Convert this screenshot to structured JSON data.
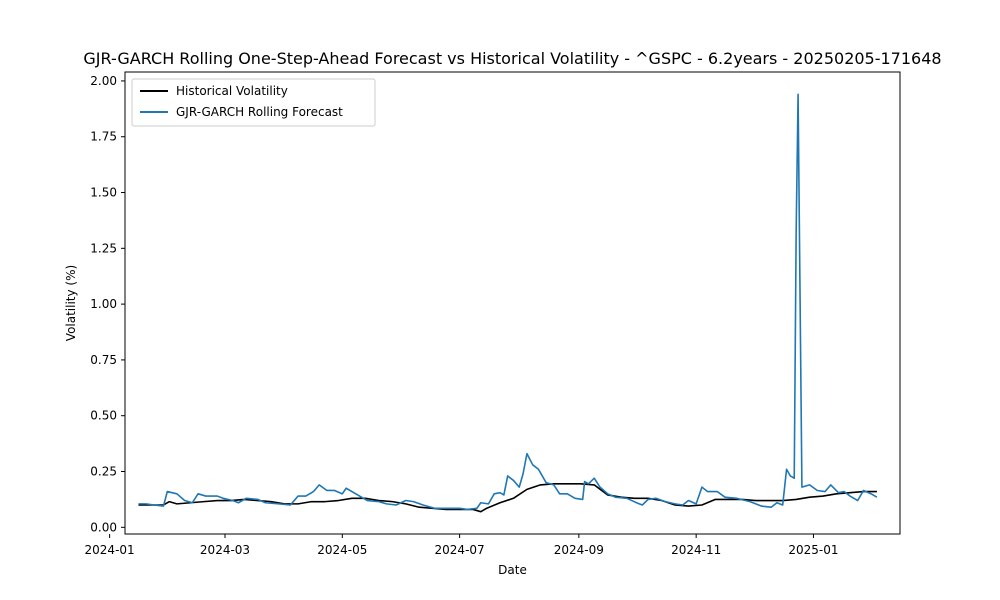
{
  "chart_data": {
    "type": "line",
    "title": "GJR-GARCH Rolling One-Step-Ahead Forecast vs Historical Volatility - ^GSPC - 6.2years - 20250205-171648",
    "xlabel": "Date",
    "ylabel": "Volatility (%)",
    "ylim": [
      -0.03,
      2.04
    ],
    "xlim": [
      "2024-01-09",
      "2025-02-15"
    ],
    "x_ticks": [
      "2024-01-01",
      "2024-03-01",
      "2024-05-01",
      "2024-07-01",
      "2024-09-01",
      "2024-11-01",
      "2025-01-01"
    ],
    "x_tick_labels": [
      "2024-01",
      "2024-03",
      "2024-05",
      "2024-07",
      "2024-09",
      "2024-11",
      "2025-01"
    ],
    "y_ticks": [
      0.0,
      0.25,
      0.5,
      0.75,
      1.0,
      1.25,
      1.5,
      1.75,
      2.0
    ],
    "y_tick_labels": [
      "0.00",
      "0.25",
      "0.50",
      "0.75",
      "1.00",
      "1.25",
      "1.50",
      "1.75",
      "2.00"
    ],
    "grid": false,
    "legend": "top-left",
    "series": [
      {
        "name": "Historical Volatility",
        "color": "#000000",
        "points": [
          [
            "2024-01-16",
            0.1
          ],
          [
            "2024-01-22",
            0.1
          ],
          [
            "2024-01-29",
            0.1
          ],
          [
            "2024-02-01",
            0.115
          ],
          [
            "2024-02-05",
            0.105
          ],
          [
            "2024-02-12",
            0.11
          ],
          [
            "2024-02-19",
            0.115
          ],
          [
            "2024-02-26",
            0.12
          ],
          [
            "2024-03-04",
            0.12
          ],
          [
            "2024-03-11",
            0.125
          ],
          [
            "2024-03-18",
            0.12
          ],
          [
            "2024-03-25",
            0.115
          ],
          [
            "2024-04-01",
            0.105
          ],
          [
            "2024-04-08",
            0.105
          ],
          [
            "2024-04-15",
            0.115
          ],
          [
            "2024-04-22",
            0.115
          ],
          [
            "2024-04-29",
            0.12
          ],
          [
            "2024-05-06",
            0.13
          ],
          [
            "2024-05-13",
            0.13
          ],
          [
            "2024-05-20",
            0.12
          ],
          [
            "2024-05-27",
            0.115
          ],
          [
            "2024-06-03",
            0.105
          ],
          [
            "2024-06-10",
            0.09
          ],
          [
            "2024-06-17",
            0.085
          ],
          [
            "2024-06-24",
            0.08
          ],
          [
            "2024-07-01",
            0.08
          ],
          [
            "2024-07-08",
            0.08
          ],
          [
            "2024-07-12",
            0.07
          ],
          [
            "2024-07-15",
            0.085
          ],
          [
            "2024-07-22",
            0.11
          ],
          [
            "2024-07-29",
            0.13
          ],
          [
            "2024-08-05",
            0.17
          ],
          [
            "2024-08-12",
            0.19
          ],
          [
            "2024-08-19",
            0.195
          ],
          [
            "2024-08-26",
            0.195
          ],
          [
            "2024-09-02",
            0.195
          ],
          [
            "2024-09-09",
            0.19
          ],
          [
            "2024-09-16",
            0.145
          ],
          [
            "2024-09-23",
            0.135
          ],
          [
            "2024-09-30",
            0.13
          ],
          [
            "2024-10-07",
            0.13
          ],
          [
            "2024-10-14",
            0.12
          ],
          [
            "2024-10-21",
            0.1
          ],
          [
            "2024-10-28",
            0.095
          ],
          [
            "2024-11-04",
            0.1
          ],
          [
            "2024-11-11",
            0.125
          ],
          [
            "2024-11-18",
            0.125
          ],
          [
            "2024-11-25",
            0.125
          ],
          [
            "2024-12-02",
            0.12
          ],
          [
            "2024-12-09",
            0.12
          ],
          [
            "2024-12-16",
            0.12
          ],
          [
            "2024-12-23",
            0.125
          ],
          [
            "2024-12-30",
            0.135
          ],
          [
            "2025-01-06",
            0.14
          ],
          [
            "2025-01-13",
            0.15
          ],
          [
            "2025-01-20",
            0.155
          ],
          [
            "2025-01-27",
            0.16
          ],
          [
            "2025-02-03",
            0.16
          ]
        ]
      },
      {
        "name": "GJR-GARCH Rolling Forecast",
        "color": "#1f77b4",
        "points": [
          [
            "2024-01-16",
            0.105
          ],
          [
            "2024-01-20",
            0.105
          ],
          [
            "2024-01-24",
            0.1
          ],
          [
            "2024-01-29",
            0.095
          ],
          [
            "2024-01-31",
            0.16
          ],
          [
            "2024-02-05",
            0.15
          ],
          [
            "2024-02-09",
            0.12
          ],
          [
            "2024-02-13",
            0.11
          ],
          [
            "2024-02-16",
            0.15
          ],
          [
            "2024-02-20",
            0.14
          ],
          [
            "2024-02-26",
            0.14
          ],
          [
            "2024-02-29",
            0.13
          ],
          [
            "2024-03-05",
            0.12
          ],
          [
            "2024-03-08",
            0.11
          ],
          [
            "2024-03-12",
            0.13
          ],
          [
            "2024-03-18",
            0.125
          ],
          [
            "2024-03-22",
            0.11
          ],
          [
            "2024-03-29",
            0.105
          ],
          [
            "2024-04-04",
            0.1
          ],
          [
            "2024-04-08",
            0.14
          ],
          [
            "2024-04-12",
            0.14
          ],
          [
            "2024-04-16",
            0.16
          ],
          [
            "2024-04-19",
            0.19
          ],
          [
            "2024-04-23",
            0.165
          ],
          [
            "2024-04-27",
            0.165
          ],
          [
            "2024-05-01",
            0.15
          ],
          [
            "2024-05-03",
            0.175
          ],
          [
            "2024-05-08",
            0.15
          ],
          [
            "2024-05-14",
            0.12
          ],
          [
            "2024-05-20",
            0.115
          ],
          [
            "2024-05-24",
            0.105
          ],
          [
            "2024-05-29",
            0.1
          ],
          [
            "2024-06-03",
            0.12
          ],
          [
            "2024-06-07",
            0.115
          ],
          [
            "2024-06-12",
            0.1
          ],
          [
            "2024-06-18",
            0.085
          ],
          [
            "2024-06-24",
            0.085
          ],
          [
            "2024-07-01",
            0.085
          ],
          [
            "2024-07-05",
            0.08
          ],
          [
            "2024-07-10",
            0.085
          ],
          [
            "2024-07-12",
            0.11
          ],
          [
            "2024-07-16",
            0.105
          ],
          [
            "2024-07-19",
            0.15
          ],
          [
            "2024-07-22",
            0.155
          ],
          [
            "2024-07-24",
            0.145
          ],
          [
            "2024-07-26",
            0.23
          ],
          [
            "2024-07-29",
            0.21
          ],
          [
            "2024-08-01",
            0.18
          ],
          [
            "2024-08-03",
            0.24
          ],
          [
            "2024-08-05",
            0.33
          ],
          [
            "2024-08-08",
            0.28
          ],
          [
            "2024-08-11",
            0.26
          ],
          [
            "2024-08-15",
            0.2
          ],
          [
            "2024-08-19",
            0.19
          ],
          [
            "2024-08-22",
            0.15
          ],
          [
            "2024-08-26",
            0.15
          ],
          [
            "2024-08-30",
            0.13
          ],
          [
            "2024-09-03",
            0.125
          ],
          [
            "2024-09-04",
            0.205
          ],
          [
            "2024-09-06",
            0.195
          ],
          [
            "2024-09-09",
            0.22
          ],
          [
            "2024-09-12",
            0.18
          ],
          [
            "2024-09-16",
            0.15
          ],
          [
            "2024-09-20",
            0.135
          ],
          [
            "2024-09-26",
            0.13
          ],
          [
            "2024-10-01",
            0.11
          ],
          [
            "2024-10-04",
            0.1
          ],
          [
            "2024-10-07",
            0.125
          ],
          [
            "2024-10-11",
            0.13
          ],
          [
            "2024-10-16",
            0.115
          ],
          [
            "2024-10-21",
            0.105
          ],
          [
            "2024-10-25",
            0.1
          ],
          [
            "2024-10-28",
            0.12
          ],
          [
            "2024-11-01",
            0.105
          ],
          [
            "2024-11-04",
            0.18
          ],
          [
            "2024-11-07",
            0.16
          ],
          [
            "2024-11-12",
            0.16
          ],
          [
            "2024-11-16",
            0.135
          ],
          [
            "2024-11-22",
            0.13
          ],
          [
            "2024-11-29",
            0.115
          ],
          [
            "2024-12-05",
            0.095
          ],
          [
            "2024-12-10",
            0.09
          ],
          [
            "2024-12-13",
            0.11
          ],
          [
            "2024-12-16",
            0.1
          ],
          [
            "2024-12-18",
            0.26
          ],
          [
            "2024-12-20",
            0.23
          ],
          [
            "2024-12-22",
            0.22
          ],
          [
            "2024-12-23",
            1.32
          ],
          [
            "2024-12-24",
            1.94
          ],
          [
            "2024-12-26",
            0.18
          ],
          [
            "2024-12-30",
            0.19
          ],
          [
            "2025-01-03",
            0.165
          ],
          [
            "2025-01-07",
            0.16
          ],
          [
            "2025-01-10",
            0.19
          ],
          [
            "2025-01-14",
            0.155
          ],
          [
            "2025-01-17",
            0.16
          ],
          [
            "2025-01-20",
            0.14
          ],
          [
            "2025-01-24",
            0.12
          ],
          [
            "2025-01-27",
            0.165
          ],
          [
            "2025-01-31",
            0.15
          ],
          [
            "2025-02-03",
            0.135
          ]
        ]
      }
    ]
  }
}
